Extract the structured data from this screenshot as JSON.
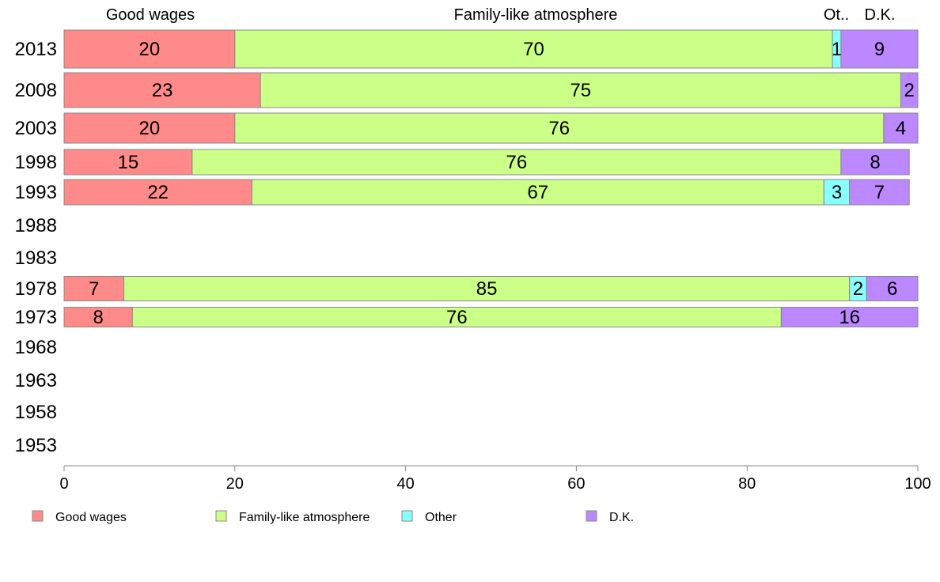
{
  "chart_data": {
    "type": "bar",
    "orientation": "horizontal",
    "stacked": true,
    "title": "",
    "xlabel": "",
    "ylabel": "",
    "xlim": [
      0,
      100
    ],
    "x_ticks": [
      0,
      20,
      40,
      60,
      80,
      100
    ],
    "grid": false,
    "legend_position": "bottom",
    "categories": [
      "2013",
      "2008",
      "2003",
      "1998",
      "1993",
      "1988",
      "1983",
      "1978",
      "1973",
      "1968",
      "1963",
      "1958",
      "1953"
    ],
    "series": [
      {
        "name": "Good wages",
        "color": "#ff8a8a",
        "values": [
          20,
          23,
          20,
          15,
          22,
          null,
          null,
          7,
          8,
          null,
          null,
          null,
          null
        ]
      },
      {
        "name": "Family-like atmosphere",
        "color": "#ccff88",
        "values": [
          70,
          75,
          76,
          76,
          67,
          null,
          null,
          85,
          76,
          null,
          null,
          null,
          null
        ]
      },
      {
        "name": "Other",
        "color": "#88ffff",
        "values": [
          1,
          0,
          0,
          0,
          3,
          null,
          null,
          2,
          0,
          null,
          null,
          null,
          null
        ]
      },
      {
        "name": "D.K.",
        "color": "#bb88ff",
        "values": [
          9,
          2,
          4,
          8,
          7,
          null,
          null,
          6,
          16,
          null,
          null,
          null,
          null
        ]
      }
    ],
    "top_labels": [
      "Good wages",
      "Family-like atmosphere",
      "Ot..",
      "D.K."
    ]
  }
}
